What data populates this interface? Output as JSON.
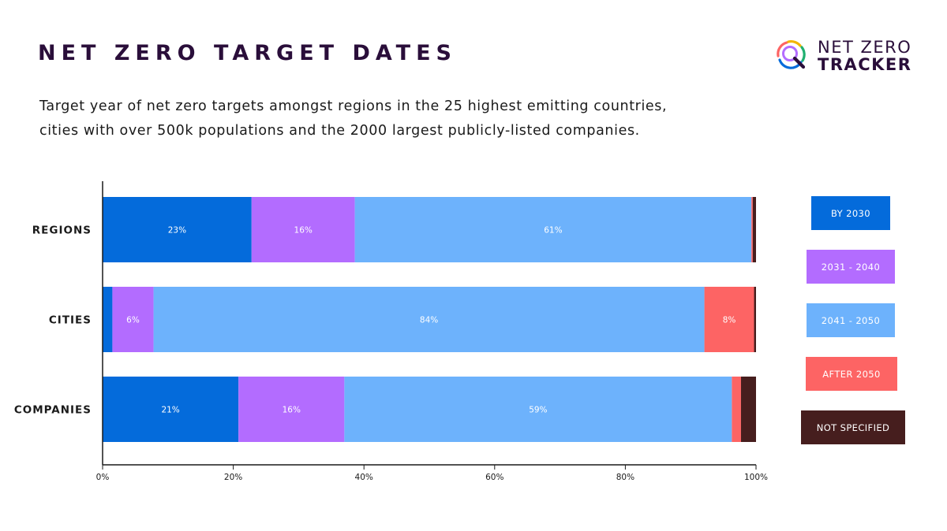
{
  "header": {
    "title": "NET ZERO TARGET DATES",
    "subtitle_line1": "Target year of net zero targets amongst regions in the 25 highest emitting countries,",
    "subtitle_line2": "cities with over 500k populations and the 2000 largest publicly-listed companies."
  },
  "logo": {
    "line1": "NET ZERO",
    "line2": "TRACKER"
  },
  "chart_data": {
    "type": "bar",
    "orientation": "horizontal",
    "stacked": true,
    "title": "",
    "xlabel": "",
    "ylabel": "",
    "xlim": [
      0,
      100
    ],
    "x_ticks": [
      "0%",
      "20%",
      "40%",
      "60%",
      "80%",
      "100%"
    ],
    "grid": false,
    "legend_position": "right",
    "categories": [
      "REGIONS",
      "CITIES",
      "COMPANIES"
    ],
    "series": [
      {
        "name": "BY 2030",
        "color": "#046bdb",
        "values": [
          22.8,
          1.5,
          20.8
        ],
        "labels": [
          "23%",
          "",
          "21%"
        ]
      },
      {
        "name": "2031 - 2040",
        "color": "#b36cff",
        "values": [
          15.8,
          6.3,
          16.2
        ],
        "labels": [
          "16%",
          "6%",
          "16%"
        ]
      },
      {
        "name": "2041 - 2050",
        "color": "#6db2fc",
        "values": [
          60.7,
          84.3,
          59.3
        ],
        "labels": [
          "61%",
          "84%",
          "59%"
        ]
      },
      {
        "name": "AFTER 2050",
        "color": "#fd6464",
        "values": [
          0.2,
          7.6,
          1.4
        ],
        "labels": [
          "",
          "8%",
          ""
        ]
      },
      {
        "name": "NOT SPECIFIED",
        "color": "#461e1e",
        "values": [
          0.5,
          0.3,
          2.3
        ],
        "labels": [
          "",
          "",
          ""
        ]
      }
    ]
  }
}
